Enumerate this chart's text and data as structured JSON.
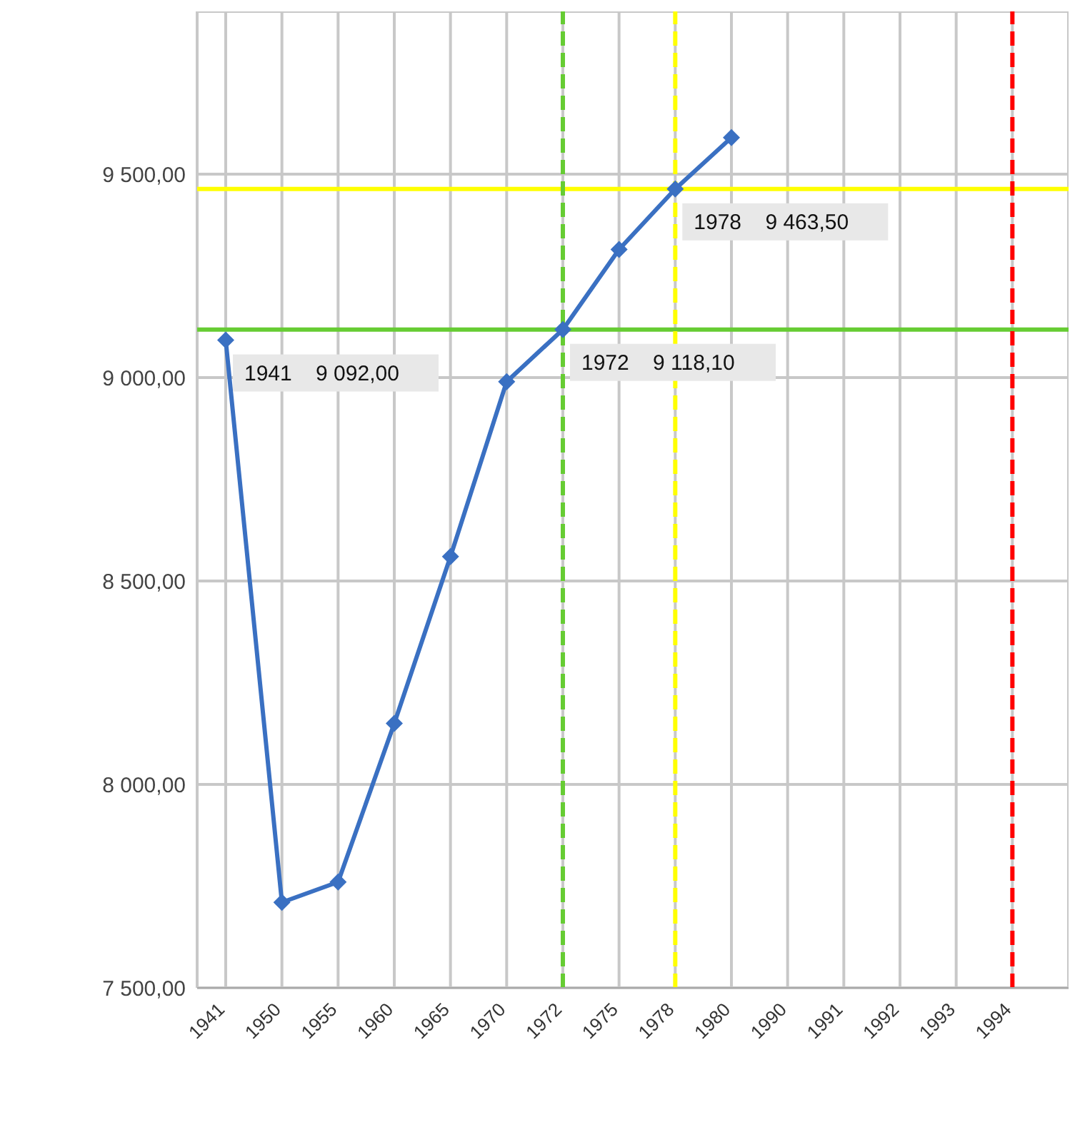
{
  "chart_data": {
    "type": "line",
    "categories": [
      "1941",
      "1950",
      "1955",
      "1960",
      "1965",
      "1970",
      "1972",
      "1975",
      "1978",
      "1980",
      "1990",
      "1991",
      "1992",
      "1993",
      "1994",
      null
    ],
    "series": [
      {
        "color": "#3a70c2",
        "values": [
          9092,
          7710,
          7760,
          8150,
          8560,
          8990,
          9118.1,
          9315,
          9463.5,
          9590,
          null,
          null,
          null,
          null,
          null,
          null
        ]
      }
    ],
    "ylim": [
      7500,
      9900
    ],
    "yticks": [
      {
        "value": 7500,
        "label": "7 500,00"
      },
      {
        "value": 8000,
        "label": "8 000,00"
      },
      {
        "value": 8500,
        "label": "8 500,00"
      },
      {
        "value": 9000,
        "label": "9 000,00"
      },
      {
        "value": 9500,
        "label": "9 500,00"
      }
    ],
    "grid": true,
    "legend": false,
    "marker": "diamond",
    "line_style": "solid",
    "ref_lines": [
      {
        "axis": "y",
        "value": 9118.1,
        "color": "#66cc33",
        "line_style": "solid"
      },
      {
        "axis": "y",
        "value": 9463.5,
        "color": "#ffff00",
        "line_style": "solid"
      },
      {
        "axis": "x",
        "value": "1972",
        "color": "#66cc33",
        "line_style": "dashed"
      },
      {
        "axis": "x",
        "value": "1978",
        "color": "#ffff00",
        "line_style": "dashed"
      },
      {
        "axis": "x",
        "value": "1994",
        "color": "#ff0000",
        "line_style": "dashed"
      }
    ],
    "annotations": [
      {
        "text": "1941    9 092,00",
        "x": "1941",
        "y": 9092
      },
      {
        "text": "1972    9 118,10",
        "x": "1972",
        "y": 9118.1
      },
      {
        "text": "1978    9 463,50",
        "x": "1978",
        "y": 9463.5
      }
    ]
  }
}
